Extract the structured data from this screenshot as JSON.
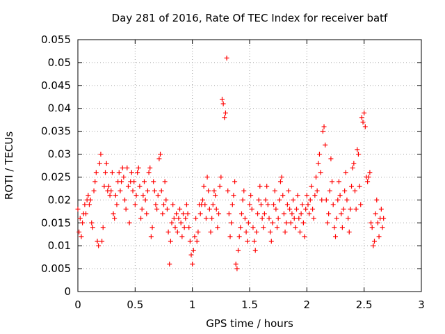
{
  "chart_data": {
    "type": "scatter",
    "title": "Day 281 of 2016, Rate Of TEC Index for receiver batf",
    "xlabel": "GPS time / hours",
    "ylabel": "ROTI / TECUs",
    "xlim": [
      0,
      3
    ],
    "ylim": [
      0,
      0.055
    ],
    "xticks": [
      0,
      0.5,
      1,
      1.5,
      2,
      2.5,
      3
    ],
    "xtick_labels": [
      "0",
      "0.5",
      "1",
      "1.5",
      "2",
      "2.5",
      "3"
    ],
    "yticks": [
      0,
      0.005,
      0.01,
      0.015,
      0.02,
      0.025,
      0.03,
      0.035,
      0.04,
      0.045,
      0.05,
      0.055
    ],
    "ytick_labels": [
      "0",
      "0.005",
      "0.01",
      "0.015",
      "0.02",
      "0.025",
      "0.03",
      "0.035",
      "0.04",
      "0.045",
      "0.05",
      "0.055"
    ],
    "grid": true,
    "marker": "+",
    "color": "#ff0000",
    "points": [
      [
        0.0,
        0.018
      ],
      [
        0.01,
        0.013
      ],
      [
        0.02,
        0.016
      ],
      [
        0.03,
        0.012
      ],
      [
        0.04,
        0.015
      ],
      [
        0.05,
        0.017
      ],
      [
        0.06,
        0.019
      ],
      [
        0.07,
        0.017
      ],
      [
        0.08,
        0.02
      ],
      [
        0.09,
        0.021
      ],
      [
        0.1,
        0.019
      ],
      [
        0.11,
        0.02
      ],
      [
        0.12,
        0.015
      ],
      [
        0.13,
        0.014
      ],
      [
        0.14,
        0.022
      ],
      [
        0.15,
        0.024
      ],
      [
        0.16,
        0.026
      ],
      [
        0.17,
        0.011
      ],
      [
        0.18,
        0.01
      ],
      [
        0.19,
        0.028
      ],
      [
        0.2,
        0.03
      ],
      [
        0.21,
        0.011
      ],
      [
        0.22,
        0.014
      ],
      [
        0.23,
        0.023
      ],
      [
        0.24,
        0.026
      ],
      [
        0.25,
        0.028
      ],
      [
        0.26,
        0.022
      ],
      [
        0.27,
        0.023
      ],
      [
        0.28,
        0.021
      ],
      [
        0.29,
        0.022
      ],
      [
        0.3,
        0.026
      ],
      [
        0.31,
        0.017
      ],
      [
        0.32,
        0.016
      ],
      [
        0.33,
        0.021
      ],
      [
        0.34,
        0.019
      ],
      [
        0.35,
        0.024
      ],
      [
        0.36,
        0.026
      ],
      [
        0.37,
        0.022
      ],
      [
        0.38,
        0.024
      ],
      [
        0.39,
        0.027
      ],
      [
        0.4,
        0.025
      ],
      [
        0.41,
        0.02
      ],
      [
        0.42,
        0.018
      ],
      [
        0.43,
        0.027
      ],
      [
        0.44,
        0.023
      ],
      [
        0.45,
        0.015
      ],
      [
        0.46,
        0.024
      ],
      [
        0.47,
        0.026
      ],
      [
        0.48,
        0.022
      ],
      [
        0.49,
        0.024
      ],
      [
        0.5,
        0.019
      ],
      [
        0.51,
        0.021
      ],
      [
        0.52,
        0.026
      ],
      [
        0.53,
        0.027
      ],
      [
        0.54,
        0.023
      ],
      [
        0.55,
        0.016
      ],
      [
        0.56,
        0.018
      ],
      [
        0.57,
        0.021
      ],
      [
        0.58,
        0.024
      ],
      [
        0.59,
        0.02
      ],
      [
        0.6,
        0.017
      ],
      [
        0.61,
        0.022
      ],
      [
        0.62,
        0.026
      ],
      [
        0.63,
        0.027
      ],
      [
        0.64,
        0.012
      ],
      [
        0.65,
        0.014
      ],
      [
        0.66,
        0.024
      ],
      [
        0.67,
        0.022
      ],
      [
        0.68,
        0.019
      ],
      [
        0.69,
        0.018
      ],
      [
        0.7,
        0.021
      ],
      [
        0.71,
        0.029
      ],
      [
        0.72,
        0.03
      ],
      [
        0.73,
        0.022
      ],
      [
        0.74,
        0.017
      ],
      [
        0.75,
        0.019
      ],
      [
        0.76,
        0.024
      ],
      [
        0.77,
        0.02
      ],
      [
        0.78,
        0.018
      ],
      [
        0.79,
        0.013
      ],
      [
        0.8,
        0.006
      ],
      [
        0.81,
        0.011
      ],
      [
        0.82,
        0.015
      ],
      [
        0.83,
        0.019
      ],
      [
        0.84,
        0.016
      ],
      [
        0.85,
        0.014
      ],
      [
        0.86,
        0.017
      ],
      [
        0.87,
        0.013
      ],
      [
        0.88,
        0.016
      ],
      [
        0.89,
        0.018
      ],
      [
        0.9,
        0.015
      ],
      [
        0.91,
        0.012
      ],
      [
        0.92,
        0.017
      ],
      [
        0.93,
        0.014
      ],
      [
        0.94,
        0.016
      ],
      [
        0.95,
        0.019
      ],
      [
        0.96,
        0.017
      ],
      [
        0.97,
        0.014
      ],
      [
        0.98,
        0.011
      ],
      [
        0.99,
        0.008
      ],
      [
        1.0,
        0.006
      ],
      [
        1.01,
        0.009
      ],
      [
        1.02,
        0.012
      ],
      [
        1.03,
        0.016
      ],
      [
        1.04,
        0.011
      ],
      [
        1.05,
        0.013
      ],
      [
        1.06,
        0.019
      ],
      [
        1.07,
        0.017
      ],
      [
        1.08,
        0.019
      ],
      [
        1.09,
        0.02
      ],
      [
        1.1,
        0.023
      ],
      [
        1.11,
        0.019
      ],
      [
        1.12,
        0.016
      ],
      [
        1.13,
        0.025
      ],
      [
        1.14,
        0.022
      ],
      [
        1.15,
        0.018
      ],
      [
        1.16,
        0.013
      ],
      [
        1.17,
        0.016
      ],
      [
        1.18,
        0.019
      ],
      [
        1.19,
        0.022
      ],
      [
        1.2,
        0.021
      ],
      [
        1.21,
        0.018
      ],
      [
        1.22,
        0.014
      ],
      [
        1.23,
        0.017
      ],
      [
        1.24,
        0.023
      ],
      [
        1.25,
        0.025
      ],
      [
        1.26,
        0.042
      ],
      [
        1.27,
        0.041
      ],
      [
        1.28,
        0.038
      ],
      [
        1.29,
        0.039
      ],
      [
        1.3,
        0.051
      ],
      [
        1.31,
        0.022
      ],
      [
        1.32,
        0.017
      ],
      [
        1.33,
        0.012
      ],
      [
        1.34,
        0.015
      ],
      [
        1.35,
        0.019
      ],
      [
        1.36,
        0.021
      ],
      [
        1.37,
        0.024
      ],
      [
        1.38,
        0.006
      ],
      [
        1.39,
        0.005
      ],
      [
        1.4,
        0.009
      ],
      [
        1.41,
        0.012
      ],
      [
        1.42,
        0.014
      ],
      [
        1.43,
        0.017
      ],
      [
        1.44,
        0.02
      ],
      [
        1.45,
        0.022
      ],
      [
        1.46,
        0.016
      ],
      [
        1.47,
        0.013
      ],
      [
        1.48,
        0.011
      ],
      [
        1.49,
        0.015
      ],
      [
        1.5,
        0.019
      ],
      [
        1.51,
        0.021
      ],
      [
        1.52,
        0.018
      ],
      [
        1.53,
        0.014
      ],
      [
        1.54,
        0.011
      ],
      [
        1.55,
        0.009
      ],
      [
        1.56,
        0.013
      ],
      [
        1.57,
        0.017
      ],
      [
        1.58,
        0.02
      ],
      [
        1.59,
        0.023
      ],
      [
        1.6,
        0.019
      ],
      [
        1.61,
        0.016
      ],
      [
        1.62,
        0.014
      ],
      [
        1.63,
        0.017
      ],
      [
        1.64,
        0.02
      ],
      [
        1.65,
        0.023
      ],
      [
        1.66,
        0.019
      ],
      [
        1.67,
        0.016
      ],
      [
        1.68,
        0.013
      ],
      [
        1.69,
        0.011
      ],
      [
        1.7,
        0.015
      ],
      [
        1.71,
        0.019
      ],
      [
        1.72,
        0.022
      ],
      [
        1.73,
        0.018
      ],
      [
        1.74,
        0.014
      ],
      [
        1.75,
        0.016
      ],
      [
        1.76,
        0.02
      ],
      [
        1.77,
        0.024
      ],
      [
        1.78,
        0.025
      ],
      [
        1.79,
        0.021
      ],
      [
        1.8,
        0.017
      ],
      [
        1.81,
        0.013
      ],
      [
        1.82,
        0.015
      ],
      [
        1.83,
        0.019
      ],
      [
        1.84,
        0.022
      ],
      [
        1.85,
        0.018
      ],
      [
        1.86,
        0.015
      ],
      [
        1.87,
        0.017
      ],
      [
        1.88,
        0.02
      ],
      [
        1.89,
        0.016
      ],
      [
        1.9,
        0.014
      ],
      [
        1.91,
        0.018
      ],
      [
        1.92,
        0.021
      ],
      [
        1.93,
        0.016
      ],
      [
        1.94,
        0.013
      ],
      [
        1.95,
        0.017
      ],
      [
        1.96,
        0.019
      ],
      [
        1.97,
        0.015
      ],
      [
        1.98,
        0.012
      ],
      [
        1.99,
        0.018
      ],
      [
        2.0,
        0.021
      ],
      [
        2.01,
        0.019
      ],
      [
        2.02,
        0.017
      ],
      [
        2.03,
        0.02
      ],
      [
        2.04,
        0.023
      ],
      [
        2.05,
        0.018
      ],
      [
        2.06,
        0.016
      ],
      [
        2.07,
        0.021
      ],
      [
        2.08,
        0.025
      ],
      [
        2.09,
        0.022
      ],
      [
        2.1,
        0.028
      ],
      [
        2.11,
        0.03
      ],
      [
        2.12,
        0.026
      ],
      [
        2.13,
        0.02
      ],
      [
        2.14,
        0.035
      ],
      [
        2.15,
        0.036
      ],
      [
        2.16,
        0.032
      ],
      [
        2.17,
        0.02
      ],
      [
        2.18,
        0.015
      ],
      [
        2.19,
        0.017
      ],
      [
        2.2,
        0.022
      ],
      [
        2.21,
        0.029
      ],
      [
        2.22,
        0.024
      ],
      [
        2.23,
        0.019
      ],
      [
        2.24,
        0.014
      ],
      [
        2.25,
        0.012
      ],
      [
        2.26,
        0.016
      ],
      [
        2.27,
        0.02
      ],
      [
        2.28,
        0.024
      ],
      [
        2.29,
        0.021
      ],
      [
        2.3,
        0.017
      ],
      [
        2.31,
        0.014
      ],
      [
        2.32,
        0.018
      ],
      [
        2.33,
        0.022
      ],
      [
        2.34,
        0.026
      ],
      [
        2.35,
        0.02
      ],
      [
        2.36,
        0.016
      ],
      [
        2.37,
        0.013
      ],
      [
        2.38,
        0.018
      ],
      [
        2.39,
        0.023
      ],
      [
        2.4,
        0.027
      ],
      [
        2.41,
        0.028
      ],
      [
        2.42,
        0.022
      ],
      [
        2.43,
        0.018
      ],
      [
        2.44,
        0.031
      ],
      [
        2.45,
        0.03
      ],
      [
        2.46,
        0.023
      ],
      [
        2.47,
        0.019
      ],
      [
        2.48,
        0.038
      ],
      [
        2.49,
        0.037
      ],
      [
        2.5,
        0.039
      ],
      [
        2.51,
        0.036
      ],
      [
        2.52,
        0.025
      ],
      [
        2.53,
        0.024
      ],
      [
        2.54,
        0.025
      ],
      [
        2.55,
        0.026
      ],
      [
        2.56,
        0.015
      ],
      [
        2.57,
        0.014
      ],
      [
        2.58,
        0.01
      ],
      [
        2.59,
        0.011
      ],
      [
        2.6,
        0.017
      ],
      [
        2.61,
        0.02
      ],
      [
        2.62,
        0.015
      ],
      [
        2.63,
        0.012
      ],
      [
        2.64,
        0.016
      ],
      [
        2.65,
        0.018
      ],
      [
        2.66,
        0.014
      ],
      [
        2.67,
        0.016
      ]
    ]
  }
}
